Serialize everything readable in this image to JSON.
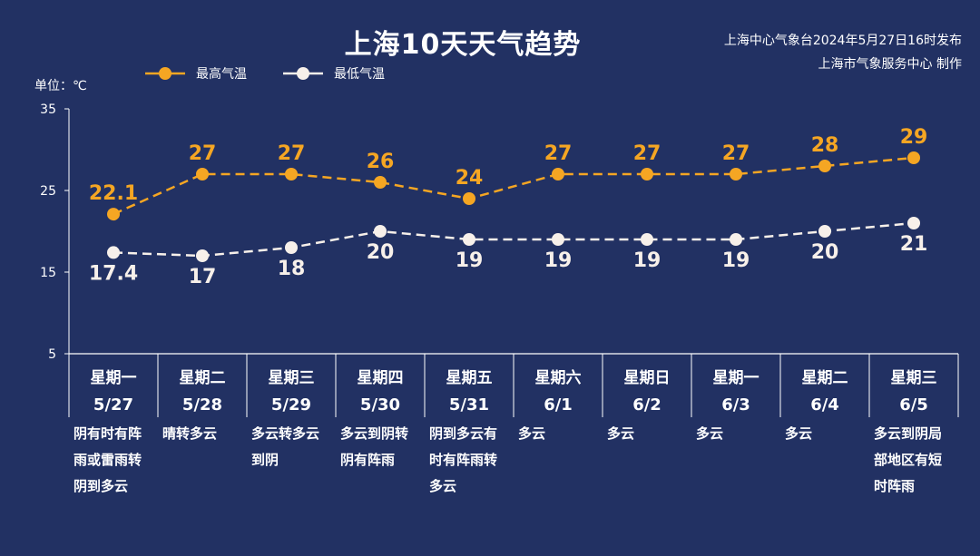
{
  "header": {
    "title": "上海10天天气趋势",
    "publish_line": "上海中心气象台2024年5月27日16时发布",
    "producer_line": "上海市气象服务中心 制作"
  },
  "colors": {
    "background": "#223163",
    "high": "#f5a623",
    "low": "#f7f0ea",
    "grid": "#ffffff"
  },
  "chart_data": {
    "type": "line",
    "unit_label": "单位：℃",
    "ylim": [
      5,
      35
    ],
    "yticks": [
      5,
      15,
      25,
      35
    ],
    "legend_position": "top-left",
    "categories": [
      {
        "day": "星期一",
        "date": "5/27",
        "weather": [
          "阴有时有阵",
          "雨或雷雨转",
          "阴到多云"
        ]
      },
      {
        "day": "星期二",
        "date": "5/28",
        "weather": [
          "晴转多云"
        ]
      },
      {
        "day": "星期三",
        "date": "5/29",
        "weather": [
          "多云转多云",
          "到阴"
        ]
      },
      {
        "day": "星期四",
        "date": "5/30",
        "weather": [
          "多云到阴转",
          "阴有阵雨"
        ]
      },
      {
        "day": "星期五",
        "date": "5/31",
        "weather": [
          "阴到多云有",
          "时有阵雨转",
          "多云"
        ]
      },
      {
        "day": "星期六",
        "date": "6/1",
        "weather": [
          "多云"
        ]
      },
      {
        "day": "星期日",
        "date": "6/2",
        "weather": [
          "多云"
        ]
      },
      {
        "day": "星期一",
        "date": "6/3",
        "weather": [
          "多云"
        ]
      },
      {
        "day": "星期二",
        "date": "6/4",
        "weather": [
          "多云"
        ]
      },
      {
        "day": "星期三",
        "date": "6/5",
        "weather": [
          "多云到阴局",
          "部地区有短",
          "时阵雨"
        ]
      }
    ],
    "series": [
      {
        "name": "最高气温",
        "key": "high",
        "values": [
          22.1,
          27,
          27,
          26,
          24,
          27,
          27,
          27,
          28,
          29
        ],
        "labels": [
          "22.1",
          "27",
          "27",
          "26",
          "24",
          "27",
          "27",
          "27",
          "28",
          "29"
        ]
      },
      {
        "name": "最低气温",
        "key": "low",
        "values": [
          17.4,
          17,
          18,
          20,
          19,
          19,
          19,
          19,
          20,
          21
        ],
        "labels": [
          "17.4",
          "17",
          "18",
          "20",
          "19",
          "19",
          "19",
          "19",
          "20",
          "21"
        ]
      }
    ]
  }
}
